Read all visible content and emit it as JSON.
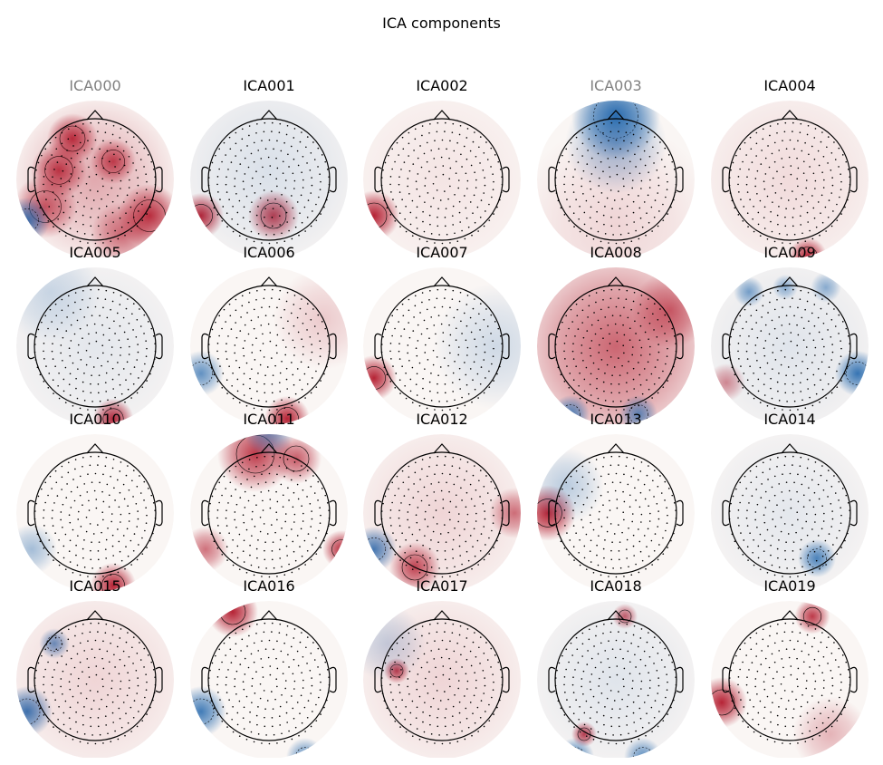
{
  "figure": {
    "title": "ICA components",
    "components": [
      {
        "label": "ICA000",
        "excluded": true
      },
      {
        "label": "ICA001",
        "excluded": false
      },
      {
        "label": "ICA002",
        "excluded": false
      },
      {
        "label": "ICA003",
        "excluded": true
      },
      {
        "label": "ICA004",
        "excluded": false
      },
      {
        "label": "ICA005",
        "excluded": false
      },
      {
        "label": "ICA006",
        "excluded": false
      },
      {
        "label": "ICA007",
        "excluded": false
      },
      {
        "label": "ICA008",
        "excluded": false
      },
      {
        "label": "ICA009",
        "excluded": false
      },
      {
        "label": "ICA010",
        "excluded": false
      },
      {
        "label": "ICA011",
        "excluded": false
      },
      {
        "label": "ICA012",
        "excluded": false
      },
      {
        "label": "ICA013",
        "excluded": false
      },
      {
        "label": "ICA014",
        "excluded": false
      },
      {
        "label": "ICA015",
        "excluded": false
      },
      {
        "label": "ICA016",
        "excluded": false
      },
      {
        "label": "ICA017",
        "excluded": false
      },
      {
        "label": "ICA018",
        "excluded": false
      },
      {
        "label": "ICA019",
        "excluded": false
      }
    ],
    "colors": {
      "positive": "#b2182b",
      "negative": "#2166ac",
      "excluded_label": "#808080"
    }
  }
}
